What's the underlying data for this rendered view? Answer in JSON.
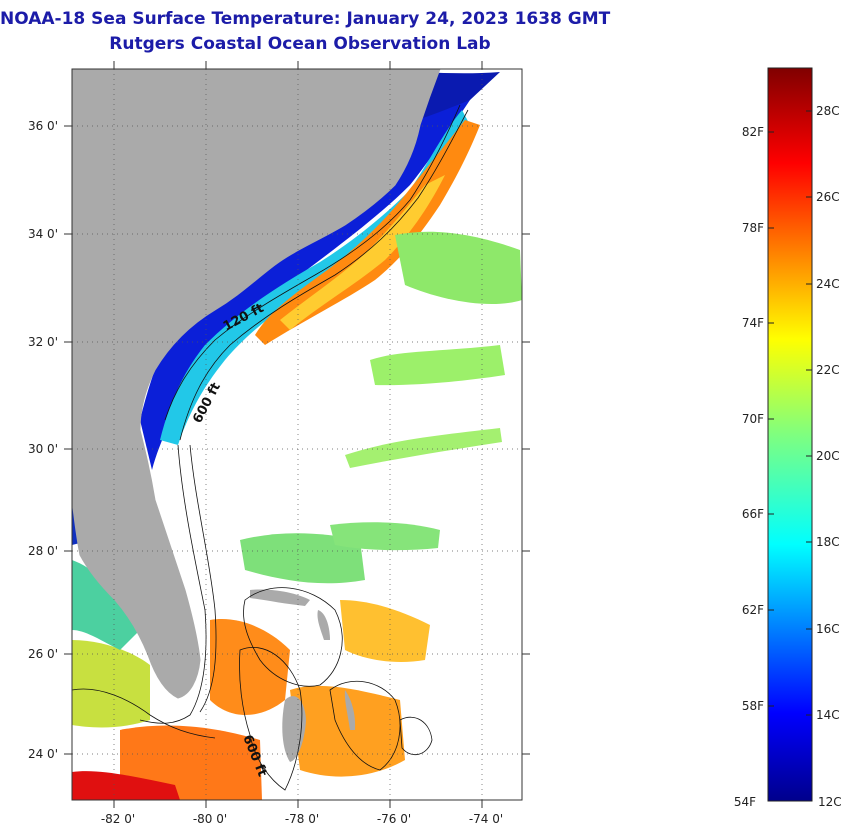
{
  "title": "NOAA-18 Sea Surface Temperature:  January 24, 2023 1638 GMT",
  "subtitle": "Rutgers Coastal Ocean Observation Lab",
  "map": {
    "lon_range": [
      -83.0,
      -73.0
    ],
    "lat_range": [
      23.0,
      37.0
    ],
    "grid": "dotted",
    "lon_ticks": [
      "-82 0'",
      "-80 0'",
      "-78 0'",
      "-76 0'",
      "-74 0'"
    ],
    "lat_ticks": [
      "36 0'",
      "34 0'",
      "32 0'",
      "30 0'",
      "28 0'",
      "26 0'",
      "24 0'"
    ],
    "contours": [
      {
        "label": "120 ft"
      },
      {
        "label": "600 ft"
      },
      {
        "label": "600 ft"
      }
    ],
    "colors": {
      "land": "#aaaaaa",
      "no_data": "#ffffff"
    }
  },
  "colorbar": {
    "celsius_labels": [
      "28C",
      "26C",
      "24C",
      "22C",
      "20C",
      "18C",
      "16C",
      "14C",
      "12C"
    ],
    "fahrenheit_labels": [
      "82F",
      "78F",
      "74F",
      "70F",
      "66F",
      "62F",
      "58F",
      "54F"
    ],
    "range_c": [
      12,
      29
    ],
    "colormap": "jet"
  }
}
